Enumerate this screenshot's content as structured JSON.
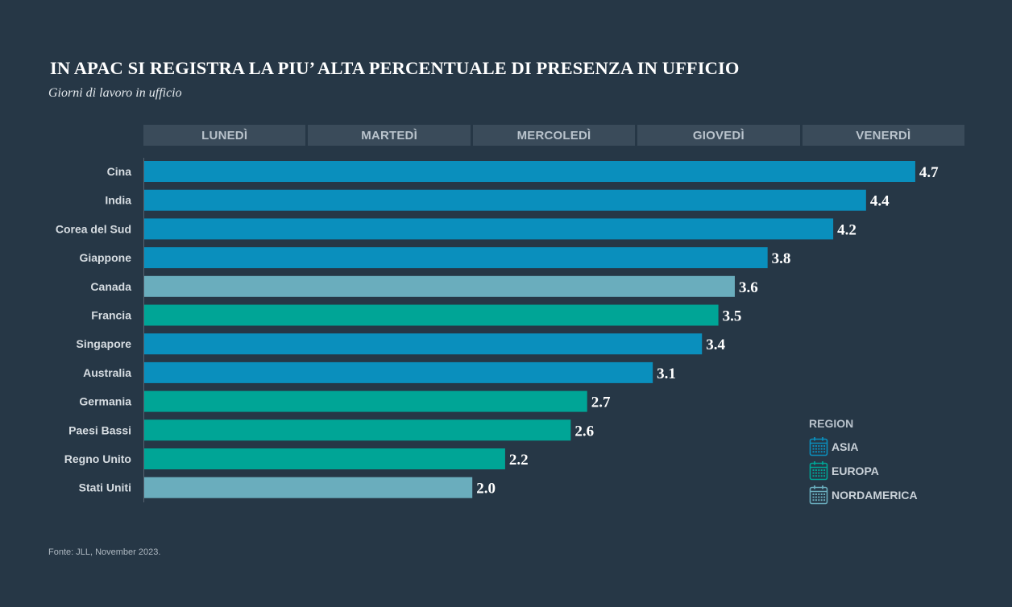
{
  "title": "IN APAC SI REGISTRA LA PIU’ ALTA PERCENTUALE DI PRESENZA IN UFFICIO",
  "subtitle": "Giorni di lavoro in ufficio",
  "days": [
    "LUNEDÌ",
    "MARTEDÌ",
    "MERCOLEDÌ",
    "GIOVEDÌ",
    "VENERDÌ"
  ],
  "legend": {
    "title": "REGION",
    "items": [
      {
        "label": "ASIA",
        "color": "#0a8fbd",
        "icon": "calendar-icon"
      },
      {
        "label": "EUROPA",
        "color": "#00a596",
        "icon": "calendar-icon"
      },
      {
        "label": "NORDAMERICA",
        "color": "#6aadbd",
        "icon": "calendar-icon"
      }
    ]
  },
  "source": "Fonte: JLL, November 2023.",
  "chart_data": {
    "type": "bar",
    "orientation": "horizontal",
    "xlim": [
      0,
      5
    ],
    "categories": [
      "Cina",
      "India",
      "Corea del Sud",
      "Giappone",
      "Canada",
      "Francia",
      "Singapore",
      "Australia",
      "Germania",
      "Paesi Bassi",
      "Regno Unito",
      "Stati Uniti"
    ],
    "values": [
      4.7,
      4.4,
      4.2,
      3.8,
      3.6,
      3.5,
      3.4,
      3.1,
      2.7,
      2.6,
      2.2,
      2.0
    ],
    "value_labels": [
      "4.7",
      "4.4",
      "4.2",
      "3.8",
      "3.6",
      "3.5",
      "3.4",
      "3.1",
      "2.7",
      "2.6",
      "2.2",
      "2.0"
    ],
    "regions": [
      "ASIA",
      "ASIA",
      "ASIA",
      "ASIA",
      "NORDAMERICA",
      "EUROPA",
      "ASIA",
      "ASIA",
      "EUROPA",
      "EUROPA",
      "EUROPA",
      "NORDAMERICA"
    ],
    "region_colors": {
      "ASIA": "#0a8fbd",
      "EUROPA": "#00a596",
      "NORDAMERICA": "#6aadbd"
    }
  }
}
